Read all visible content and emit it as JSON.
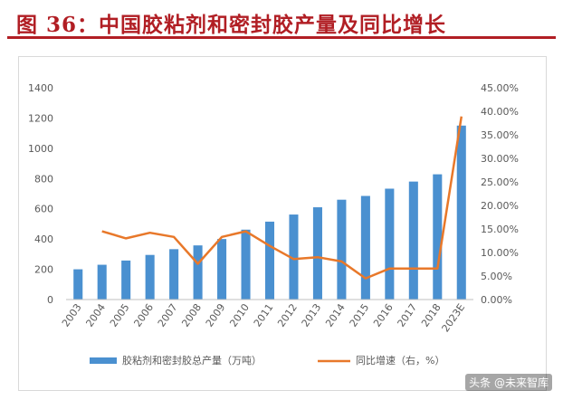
{
  "figure": {
    "title": "图 36：中国胶粘剂和密封胶产量及同比增长",
    "watermark": "头条 @未来智库"
  },
  "colors": {
    "title": "#b11e24",
    "bar": "#4a90d0",
    "line": "#e8782a",
    "axis_text": "#595959",
    "grid": "#e6e6e6"
  },
  "chart_data": {
    "type": "bar",
    "categories": [
      "2003",
      "2004",
      "2005",
      "2006",
      "2007",
      "2008",
      "2009",
      "2010",
      "2011",
      "2012",
      "2013",
      "2014",
      "2015",
      "2016",
      "2017",
      "2018",
      "2023E"
    ],
    "series": [
      {
        "name": "胶粘剂和密封胶总产量（万吨）",
        "type": "bar",
        "axis": "left",
        "values": [
          200,
          230,
          258,
          295,
          333,
          358,
          400,
          462,
          515,
          562,
          610,
          660,
          685,
          733,
          780,
          828,
          1150
        ]
      },
      {
        "name": "同比增速（右，%）",
        "type": "line",
        "axis": "right",
        "values": [
          null,
          14.5,
          13.0,
          14.2,
          13.3,
          7.6,
          13.3,
          14.5,
          11.4,
          8.6,
          9.0,
          8.1,
          4.5,
          6.6,
          6.6,
          6.6,
          38.9
        ]
      }
    ],
    "y_left": {
      "ylim": [
        0,
        1400
      ],
      "ticks": [
        "0",
        "200",
        "400",
        "600",
        "800",
        "1000",
        "1200",
        "1400"
      ]
    },
    "y_right": {
      "ylim": [
        0,
        45
      ],
      "ticks": [
        "0.00%",
        "5.00%",
        "10.00%",
        "15.00%",
        "20.00%",
        "25.00%",
        "30.00%",
        "35.00%",
        "40.00%",
        "45.00%"
      ]
    },
    "grid": false,
    "legend": "bottom"
  }
}
